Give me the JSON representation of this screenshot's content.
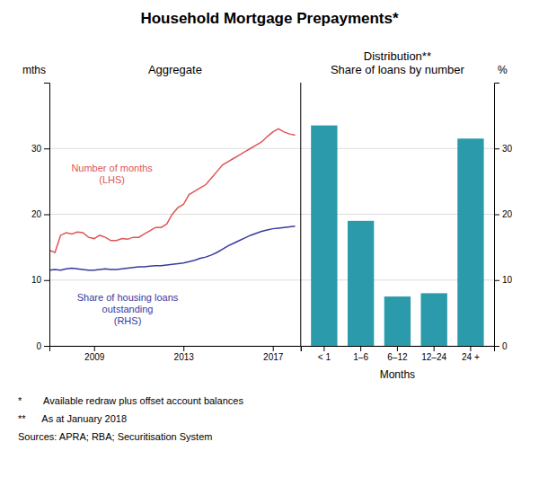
{
  "chart_data": [
    {
      "type": "line",
      "title": "Household Mortgage Prepayments*",
      "subtitle": "Aggregate",
      "ylabel": "mths",
      "x": [
        2007.0,
        2007.25,
        2007.5,
        2007.75,
        2008.0,
        2008.25,
        2008.5,
        2008.75,
        2009.0,
        2009.25,
        2009.5,
        2009.75,
        2010.0,
        2010.25,
        2010.5,
        2010.75,
        2011.0,
        2011.25,
        2011.5,
        2011.75,
        2012.0,
        2012.25,
        2012.5,
        2012.75,
        2013.0,
        2013.25,
        2013.5,
        2013.75,
        2014.0,
        2014.25,
        2014.5,
        2014.75,
        2015.0,
        2015.25,
        2015.5,
        2015.75,
        2016.0,
        2016.25,
        2016.5,
        2016.75,
        2017.0,
        2017.25,
        2017.5,
        2017.75,
        2018.0
      ],
      "series": [
        {
          "color": "#e05555",
          "values": [
            14.5,
            14.2,
            16.8,
            17.2,
            17.0,
            17.3,
            17.2,
            16.5,
            16.3,
            16.8,
            16.5,
            16.0,
            16.0,
            16.3,
            16.2,
            16.5,
            16.5,
            17.0,
            17.5,
            18.0,
            18.0,
            18.5,
            20.0,
            21.0,
            21.5,
            23.0,
            23.5,
            24.0,
            24.5,
            25.5,
            26.5,
            27.5,
            28.0,
            28.5,
            29.0,
            29.5,
            30.0,
            30.5,
            31.0,
            31.8,
            32.5,
            33.0,
            32.5,
            32.2,
            32.0
          ]
        },
        {
          "color": "#3a3a9f",
          "values": [
            11.5,
            11.6,
            11.5,
            11.7,
            11.8,
            11.7,
            11.6,
            11.5,
            11.5,
            11.6,
            11.7,
            11.6,
            11.6,
            11.7,
            11.8,
            11.9,
            12.0,
            12.0,
            12.1,
            12.2,
            12.2,
            12.3,
            12.4,
            12.5,
            12.6,
            12.8,
            13.0,
            13.3,
            13.5,
            13.8,
            14.2,
            14.7,
            15.2,
            15.6,
            16.0,
            16.4,
            16.8,
            17.1,
            17.4,
            17.6,
            17.8,
            17.9,
            18.0,
            18.1,
            18.2
          ]
        }
      ],
      "annotations": [
        {
          "text": "Number of months\n(LHS)",
          "x": 2009.8,
          "y": 26.0,
          "color": "#e05555"
        },
        {
          "text": "Share of housing loans\noutstanding\n(RHS)",
          "x": 2010.5,
          "y": 5.5,
          "color": "#3a3a9f"
        }
      ],
      "xlim": [
        2007.0,
        2018.25
      ],
      "xticks": [
        2009,
        2013,
        2017
      ],
      "ylim": [
        0,
        40
      ],
      "yticks": [
        0,
        10,
        20,
        30
      ],
      "grid": true,
      "footnotes": [
        "*        Available redraw plus offset account balances",
        "**      As at January 2018",
        "Sources: APRA; RBA; Securitisation System"
      ]
    },
    {
      "type": "bar",
      "subtitle": "Distribution**\nShare of loans by number",
      "ylabel": "%",
      "xlabel": "Months",
      "categories": [
        "< 1",
        "1–6",
        "6–12",
        "12–24",
        "24 +"
      ],
      "values": [
        33.5,
        19.0,
        7.5,
        8.0,
        31.5
      ],
      "color": "#2b9aaa",
      "ylim": [
        0,
        40
      ],
      "yticks": [
        0,
        10,
        20,
        30
      ],
      "grid": true
    }
  ]
}
